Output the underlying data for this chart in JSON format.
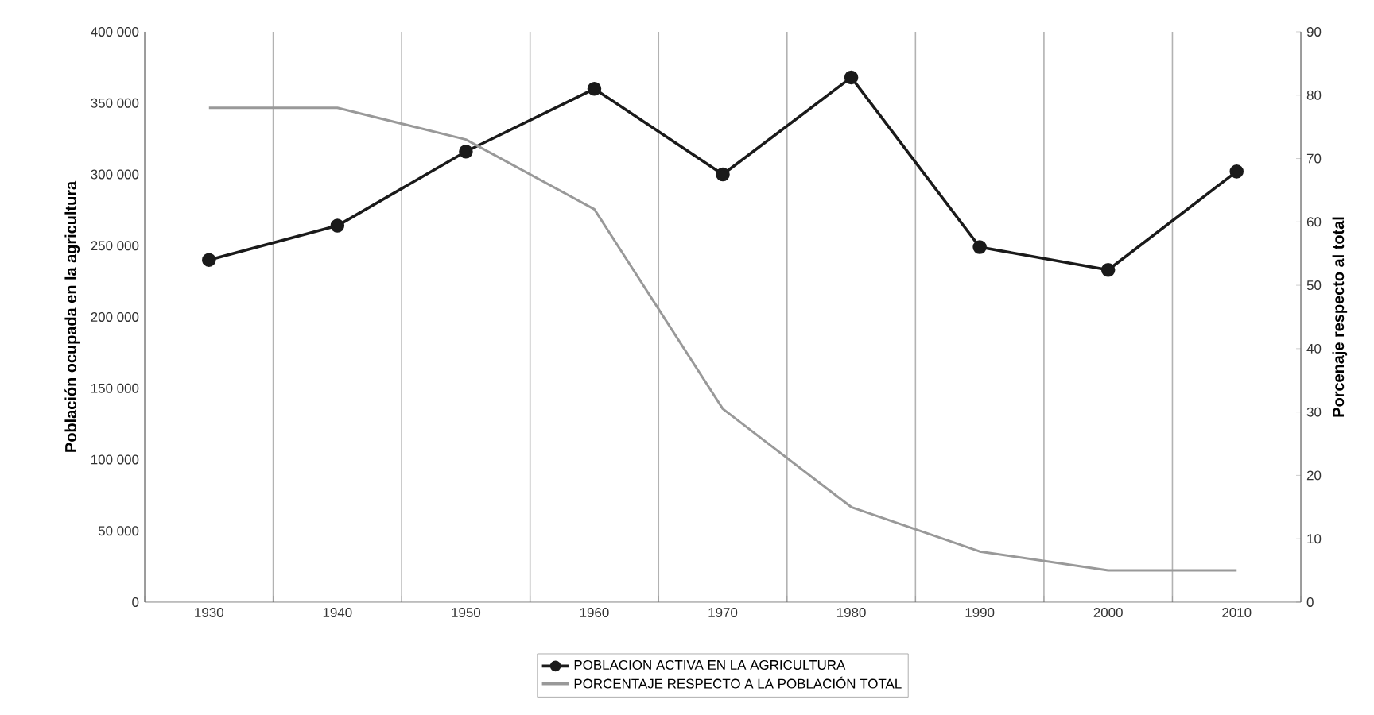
{
  "chart_data": {
    "type": "line",
    "categories": [
      "1930",
      "1940",
      "1950",
      "1960",
      "1970",
      "1980",
      "1990",
      "2000",
      "2010"
    ],
    "ylabel": "Población ocupada en la agricultura",
    "y2label": "Porcenaje respecto al total",
    "ylim": [
      0,
      400000
    ],
    "yticks": [
      {
        "value": 0,
        "label": "0"
      },
      {
        "value": 50000,
        "label": "50 000"
      },
      {
        "value": 100000,
        "label": "100 000"
      },
      {
        "value": 150000,
        "label": "150 000"
      },
      {
        "value": 200000,
        "label": "200 000"
      },
      {
        "value": 250000,
        "label": "250 000"
      },
      {
        "value": 300000,
        "label": "300 000"
      },
      {
        "value": 350000,
        "label": "350 000"
      },
      {
        "value": 400000,
        "label": "400 000"
      }
    ],
    "y2lim": [
      0,
      90
    ],
    "y2ticks": [
      0,
      10,
      20,
      30,
      40,
      50,
      60,
      70,
      80,
      90
    ],
    "grid": "x",
    "legend": "bottom",
    "series": [
      {
        "name": "POBLACION ACTIVA EN LA AGRICULTURA",
        "color": "#1a1a1a",
        "marker": "circle",
        "values": [
          240000,
          264000,
          316000,
          360000,
          300000,
          368000,
          249000,
          233000,
          302000
        ]
      },
      {
        "name": "PORCENTAJE RESPECTO A LA POBLACIÓN TOTAL",
        "color": "#999999",
        "marker": "none",
        "axis": "y2",
        "values": [
          78,
          78,
          73,
          62,
          30.5,
          15,
          8,
          5,
          5
        ]
      }
    ]
  }
}
